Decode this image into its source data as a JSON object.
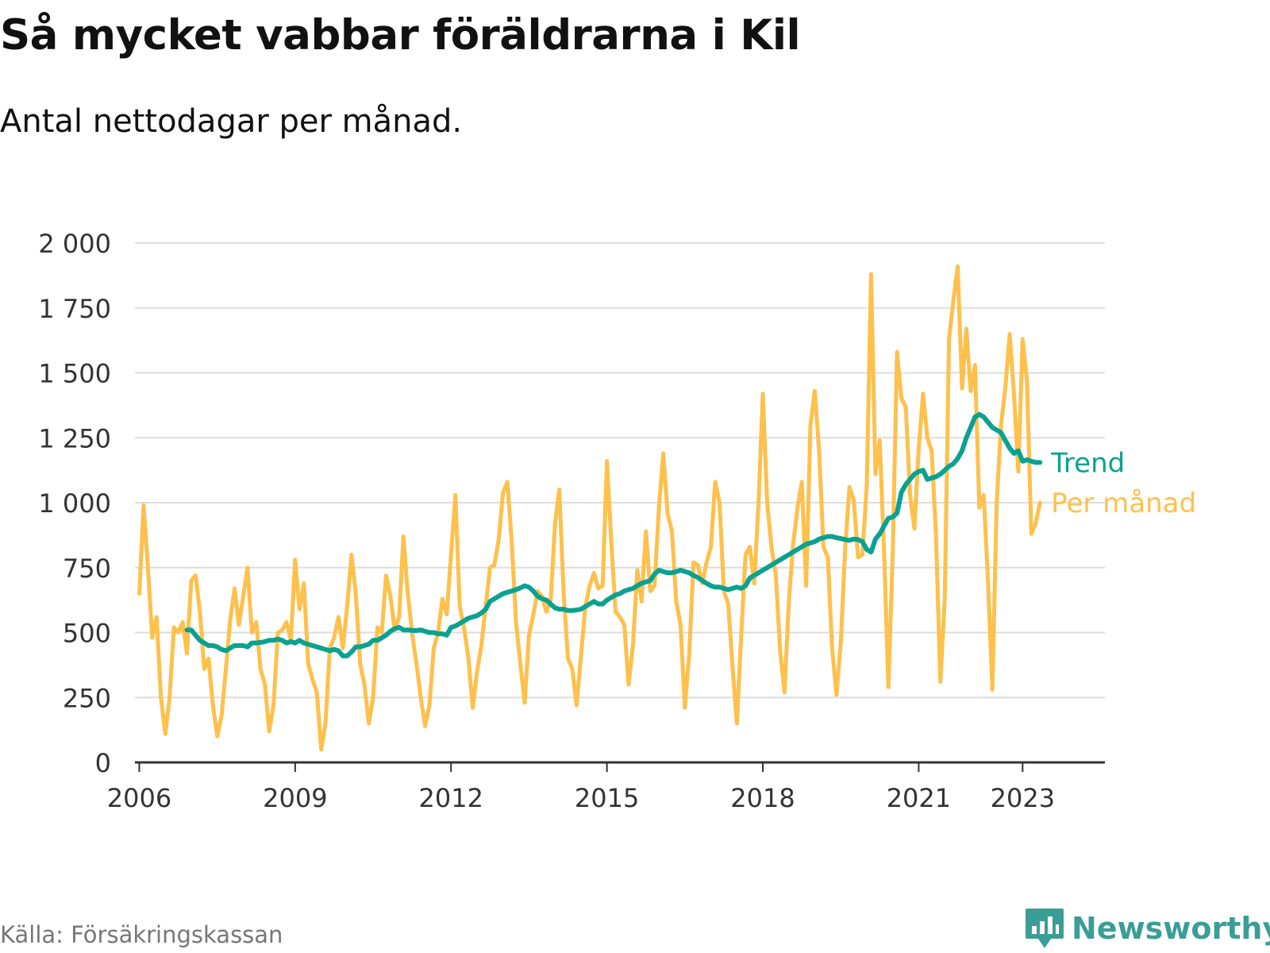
{
  "header": {
    "title": "Så mycket vabbar föräldrarna i Kil",
    "subtitle": "Antal nettodagar per månad."
  },
  "footer": {
    "source": "Källa: Försäkringskassan",
    "brand": "Newsworthy"
  },
  "colors": {
    "monthly": "#ffc04c",
    "trend": "#0ba190",
    "grid": "#dddddd",
    "axis": "#333333",
    "brand": "#3a9e96"
  },
  "chart_data": {
    "type": "line",
    "title": "Så mycket vabbar föräldrarna i Kil",
    "subtitle": "Antal nettodagar per månad.",
    "xlabel": "",
    "ylabel": "",
    "ylim": [
      0,
      2000
    ],
    "xlim": [
      "2005-12",
      "2024-08"
    ],
    "y_ticks": [
      0,
      250,
      500,
      750,
      1000,
      1250,
      1500,
      1750,
      2000
    ],
    "y_tick_labels": [
      "0",
      "250",
      "500",
      "750",
      "1 000",
      "1 250",
      "1 500",
      "1 750",
      "2 000"
    ],
    "x_ticks": [
      "2006-01",
      "2009-01",
      "2012-01",
      "2015-01",
      "2018-01",
      "2021-01",
      "2023-01"
    ],
    "x_tick_labels": [
      "2006",
      "2009",
      "2012",
      "2015",
      "2018",
      "2021",
      "2023"
    ],
    "grid": true,
    "legend": "direct labels at the right end of the lines",
    "series": [
      {
        "name": "Per månad",
        "color": "#ffc04c",
        "start": "2006-01",
        "frequency": "monthly",
        "values": [
          650,
          990,
          750,
          480,
          560,
          250,
          110,
          250,
          520,
          500,
          540,
          420,
          700,
          720,
          580,
          360,
          400,
          220,
          100,
          180,
          360,
          550,
          670,
          530,
          640,
          750,
          500,
          540,
          360,
          300,
          120,
          220,
          500,
          510,
          540,
          470,
          780,
          590,
          690,
          380,
          320,
          270,
          50,
          150,
          440,
          480,
          560,
          440,
          600,
          800,
          650,
          380,
          300,
          150,
          250,
          520,
          500,
          720,
          640,
          510,
          560,
          870,
          650,
          500,
          380,
          250,
          140,
          220,
          440,
          500,
          630,
          570,
          800,
          1030,
          600,
          520,
          400,
          210,
          350,
          450,
          600,
          750,
          760,
          860,
          1040,
          1080,
          850,
          540,
          380,
          230,
          490,
          570,
          660,
          640,
          580,
          620,
          920,
          1050,
          650,
          400,
          360,
          220,
          410,
          600,
          680,
          730,
          670,
          680,
          1160,
          850,
          580,
          560,
          530,
          300,
          450,
          740,
          620,
          890,
          660,
          680,
          980,
          1190,
          960,
          890,
          620,
          530,
          210,
          420,
          770,
          760,
          690,
          770,
          830,
          1080,
          1000,
          660,
          610,
          370,
          150,
          490,
          800,
          830,
          690,
          1000,
          1420,
          1000,
          830,
          720,
          430,
          270,
          620,
          840,
          980,
          1080,
          680,
          1300,
          1430,
          1200,
          830,
          790,
          440,
          260,
          460,
          820,
          1060,
          1010,
          790,
          800,
          1070,
          1880,
          1110,
          1240,
          810,
          290,
          810,
          1580,
          1400,
          1370,
          1030,
          900,
          1210,
          1420,
          1250,
          1200,
          870,
          310,
          630,
          1630,
          1780,
          1910,
          1440,
          1670,
          1430,
          1530,
          980,
          1030,
          700,
          280,
          1000,
          1300,
          1440,
          1650,
          1420,
          1120,
          1630,
          1470,
          880,
          920,
          1000
        ]
      },
      {
        "name": "Trend",
        "color": "#0ba190",
        "start": "2006-12",
        "frequency": "monthly",
        "values": [
          510,
          510,
          490,
          470,
          460,
          450,
          450,
          445,
          435,
          430,
          440,
          450,
          450,
          450,
          445,
          460,
          460,
          462,
          465,
          470,
          470,
          475,
          470,
          460,
          465,
          460,
          470,
          460,
          455,
          450,
          445,
          440,
          435,
          430,
          435,
          430,
          410,
          410,
          425,
          445,
          445,
          450,
          455,
          470,
          470,
          480,
          490,
          505,
          515,
          520,
          510,
          510,
          508,
          508,
          510,
          505,
          500,
          500,
          495,
          495,
          490,
          520,
          525,
          535,
          545,
          555,
          560,
          565,
          575,
          590,
          620,
          630,
          640,
          650,
          655,
          660,
          665,
          672,
          680,
          675,
          660,
          640,
          630,
          625,
          610,
          595,
          590,
          590,
          585,
          585,
          587,
          590,
          600,
          610,
          620,
          610,
          610,
          625,
          635,
          645,
          650,
          660,
          665,
          670,
          680,
          690,
          695,
          700,
          725,
          740,
          735,
          730,
          730,
          735,
          740,
          735,
          730,
          720,
          712,
          700,
          690,
          680,
          675,
          675,
          670,
          665,
          670,
          675,
          670,
          680,
          710,
          720,
          730,
          740,
          750,
          760,
          770,
          780,
          790,
          800,
          810,
          820,
          830,
          840,
          845,
          850,
          860,
          865,
          870,
          870,
          865,
          862,
          858,
          855,
          860,
          858,
          850,
          820,
          810,
          860,
          880,
          910,
          940,
          945,
          960,
          1040,
          1070,
          1090,
          1110,
          1120,
          1125,
          1090,
          1095,
          1100,
          1110,
          1125,
          1140,
          1150,
          1170,
          1200,
          1250,
          1290,
          1330,
          1340,
          1330,
          1310,
          1290,
          1280,
          1270,
          1240,
          1210,
          1190,
          1200,
          1160,
          1165,
          1160,
          1155,
          1155
        ]
      }
    ]
  }
}
